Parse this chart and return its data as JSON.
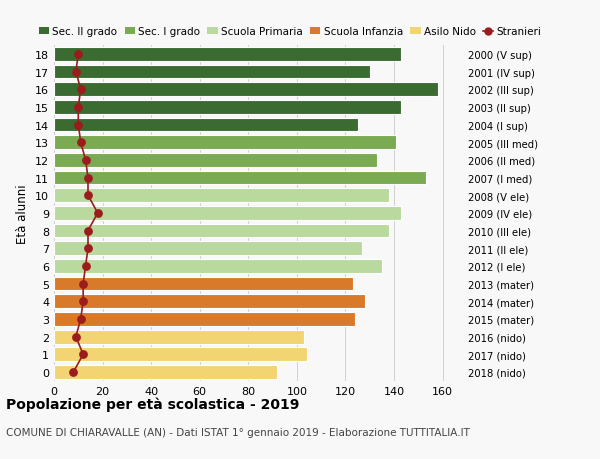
{
  "ages": [
    18,
    17,
    16,
    15,
    14,
    13,
    12,
    11,
    10,
    9,
    8,
    7,
    6,
    5,
    4,
    3,
    2,
    1,
    0
  ],
  "years": [
    "2000 (V sup)",
    "2001 (IV sup)",
    "2002 (III sup)",
    "2003 (II sup)",
    "2004 (I sup)",
    "2005 (III med)",
    "2006 (II med)",
    "2007 (I med)",
    "2008 (V ele)",
    "2009 (IV ele)",
    "2010 (III ele)",
    "2011 (II ele)",
    "2012 (I ele)",
    "2013 (mater)",
    "2014 (mater)",
    "2015 (mater)",
    "2016 (nido)",
    "2017 (nido)",
    "2018 (nido)"
  ],
  "bar_values": [
    143,
    130,
    158,
    143,
    125,
    141,
    133,
    153,
    138,
    143,
    138,
    127,
    135,
    123,
    128,
    124,
    103,
    104,
    92
  ],
  "stranieri": [
    10,
    9,
    11,
    10,
    10,
    11,
    13,
    14,
    14,
    18,
    14,
    14,
    13,
    12,
    12,
    11,
    9,
    12,
    8
  ],
  "bar_colors": [
    "#3a6b30",
    "#3a6b30",
    "#3a6b30",
    "#3a6b30",
    "#3a6b30",
    "#7aaa52",
    "#7aaa52",
    "#7aaa52",
    "#b9d99e",
    "#b9d99e",
    "#b9d99e",
    "#b9d99e",
    "#b9d99e",
    "#d9792a",
    "#d9792a",
    "#d9792a",
    "#f2d472",
    "#f2d472",
    "#f2d472"
  ],
  "legend_labels": [
    "Sec. II grado",
    "Sec. I grado",
    "Scuola Primaria",
    "Scuola Infanzia",
    "Asilo Nido",
    "Stranieri"
  ],
  "legend_colors": [
    "#3a6b30",
    "#7aaa52",
    "#b9d99e",
    "#d9792a",
    "#f2d472",
    "#9b1c1c"
  ],
  "stranieri_color": "#9b1c1c",
  "title": "Popolazione per età scolastica - 2019",
  "subtitle": "COMUNE DI CHIARAVALLE (AN) - Dati ISTAT 1° gennaio 2019 - Elaborazione TUTTITALIA.IT",
  "ylabel_left": "Età alunni",
  "xlim": [
    0,
    168
  ],
  "xticks": [
    0,
    20,
    40,
    60,
    80,
    100,
    120,
    140,
    160
  ],
  "bg_color": "#f8f8f8",
  "grid_color": "#d0d0d0",
  "bar_height": 0.78
}
